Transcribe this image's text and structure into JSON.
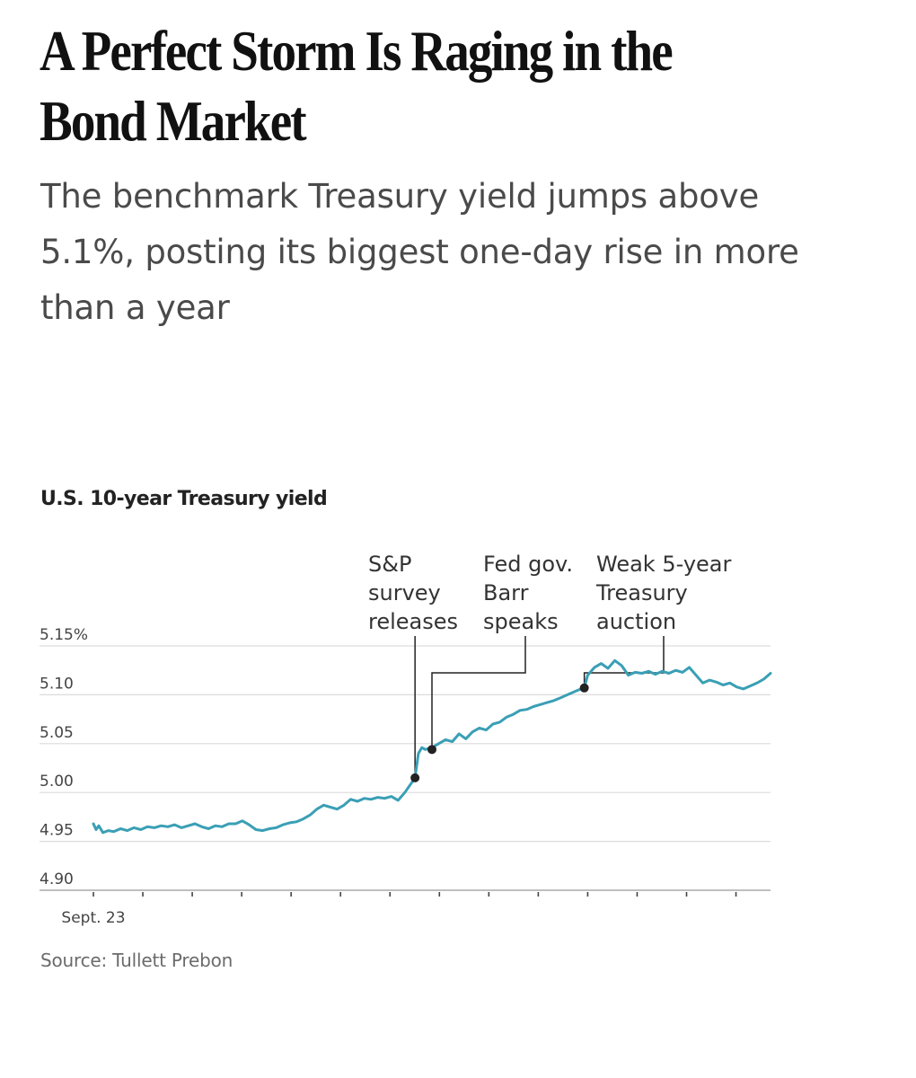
{
  "headline": "A Perfect Storm Is Raging in the Bond Market",
  "dek": "The benchmark Treasury yield jumps above 5.1%, posting its biggest one-day rise in more than a year",
  "source": "Source: Tullett Prebon",
  "chart_data": {
    "type": "line",
    "title": "U.S. 10-year Treasury yield",
    "xlabel": "",
    "ylabel": "",
    "x_tick_label": "Sept. 23",
    "y_ticks": [
      {
        "value": 5.15,
        "label": "5.15%"
      },
      {
        "value": 5.1,
        "label": "5.10"
      },
      {
        "value": 5.05,
        "label": "5.05"
      },
      {
        "value": 5.0,
        "label": "5.00"
      },
      {
        "value": 4.95,
        "label": "4.95"
      },
      {
        "value": 4.9,
        "label": "4.90"
      }
    ],
    "ylim": [
      4.9,
      5.15
    ],
    "xlim": [
      0,
      100
    ],
    "grid": true,
    "line_color": "#3a9fb5",
    "x_ticks": [
      0,
      7.3,
      14.6,
      21.9,
      29.2,
      36.5,
      43.8,
      51.1,
      58.4,
      65.7,
      73.0,
      80.3,
      87.6,
      94.9
    ],
    "series": [
      {
        "points": [
          [
            0.0,
            4.968
          ],
          [
            0.4,
            4.962
          ],
          [
            0.8,
            4.966
          ],
          [
            1.4,
            4.959
          ],
          [
            2.2,
            4.961
          ],
          [
            3.0,
            4.96
          ],
          [
            4.0,
            4.963
          ],
          [
            5.0,
            4.961
          ],
          [
            6.0,
            4.964
          ],
          [
            7.0,
            4.962
          ],
          [
            8.0,
            4.965
          ],
          [
            9.0,
            4.964
          ],
          [
            10.0,
            4.966
          ],
          [
            11.0,
            4.965
          ],
          [
            12.0,
            4.967
          ],
          [
            13.0,
            4.964
          ],
          [
            14.0,
            4.966
          ],
          [
            15.0,
            4.968
          ],
          [
            16.0,
            4.965
          ],
          [
            17.0,
            4.963
          ],
          [
            18.0,
            4.966
          ],
          [
            19.0,
            4.965
          ],
          [
            20.0,
            4.968
          ],
          [
            21.0,
            4.968
          ],
          [
            22.0,
            4.971
          ],
          [
            23.0,
            4.967
          ],
          [
            24.0,
            4.962
          ],
          [
            25.0,
            4.961
          ],
          [
            26.0,
            4.963
          ],
          [
            27.0,
            4.964
          ],
          [
            28.0,
            4.967
          ],
          [
            29.0,
            4.969
          ],
          [
            30.0,
            4.97
          ],
          [
            31.0,
            4.973
          ],
          [
            32.0,
            4.977
          ],
          [
            33.0,
            4.983
          ],
          [
            34.0,
            4.987
          ],
          [
            35.0,
            4.985
          ],
          [
            36.0,
            4.983
          ],
          [
            37.0,
            4.987
          ],
          [
            38.0,
            4.993
          ],
          [
            39.0,
            4.991
          ],
          [
            40.0,
            4.994
          ],
          [
            41.0,
            4.993
          ],
          [
            42.0,
            4.995
          ],
          [
            43.0,
            4.994
          ],
          [
            44.0,
            4.996
          ],
          [
            45.0,
            4.992
          ],
          [
            46.0,
            5.0
          ],
          [
            47.0,
            5.01
          ],
          [
            47.5,
            5.015
          ],
          [
            48.0,
            5.04
          ],
          [
            48.5,
            5.046
          ],
          [
            49.0,
            5.044
          ],
          [
            50.0,
            5.046
          ],
          [
            51.0,
            5.05
          ],
          [
            52.0,
            5.054
          ],
          [
            53.0,
            5.052
          ],
          [
            54.0,
            5.06
          ],
          [
            55.0,
            5.055
          ],
          [
            56.0,
            5.062
          ],
          [
            57.0,
            5.066
          ],
          [
            58.0,
            5.064
          ],
          [
            59.0,
            5.07
          ],
          [
            60.0,
            5.072
          ],
          [
            61.0,
            5.077
          ],
          [
            62.0,
            5.08
          ],
          [
            63.0,
            5.084
          ],
          [
            64.0,
            5.085
          ],
          [
            65.0,
            5.088
          ],
          [
            66.0,
            5.09
          ],
          [
            67.0,
            5.092
          ],
          [
            68.0,
            5.094
          ],
          [
            69.0,
            5.097
          ],
          [
            70.0,
            5.1
          ],
          [
            71.0,
            5.103
          ],
          [
            72.0,
            5.106
          ],
          [
            72.5,
            5.107
          ],
          [
            73.0,
            5.12
          ],
          [
            74.0,
            5.128
          ],
          [
            75.0,
            5.132
          ],
          [
            76.0,
            5.127
          ],
          [
            77.0,
            5.135
          ],
          [
            78.0,
            5.13
          ],
          [
            79.0,
            5.12
          ],
          [
            80.0,
            5.123
          ],
          [
            81.0,
            5.122
          ],
          [
            82.0,
            5.124
          ],
          [
            83.0,
            5.121
          ],
          [
            84.0,
            5.124
          ],
          [
            85.0,
            5.122
          ],
          [
            86.0,
            5.125
          ],
          [
            87.0,
            5.123
          ],
          [
            88.0,
            5.128
          ],
          [
            89.0,
            5.12
          ],
          [
            90.0,
            5.112
          ],
          [
            91.0,
            5.115
          ],
          [
            92.0,
            5.113
          ],
          [
            93.0,
            5.11
          ],
          [
            94.0,
            5.112
          ],
          [
            95.0,
            5.108
          ],
          [
            96.0,
            5.106
          ],
          [
            97.0,
            5.109
          ],
          [
            98.0,
            5.112
          ],
          [
            99.0,
            5.116
          ],
          [
            100.0,
            5.122
          ]
        ]
      }
    ],
    "annotations": [
      {
        "lines": [
          "S&P",
          "survey",
          "releases"
        ],
        "x": 47.5,
        "y": 5.015
      },
      {
        "lines": [
          "Fed gov.",
          "Barr",
          "speaks"
        ],
        "x": 50.0,
        "y": 5.044
      },
      {
        "lines": [
          "Weak 5-year",
          "Treasury",
          "auction"
        ],
        "x": 72.5,
        "y": 5.107
      }
    ]
  }
}
